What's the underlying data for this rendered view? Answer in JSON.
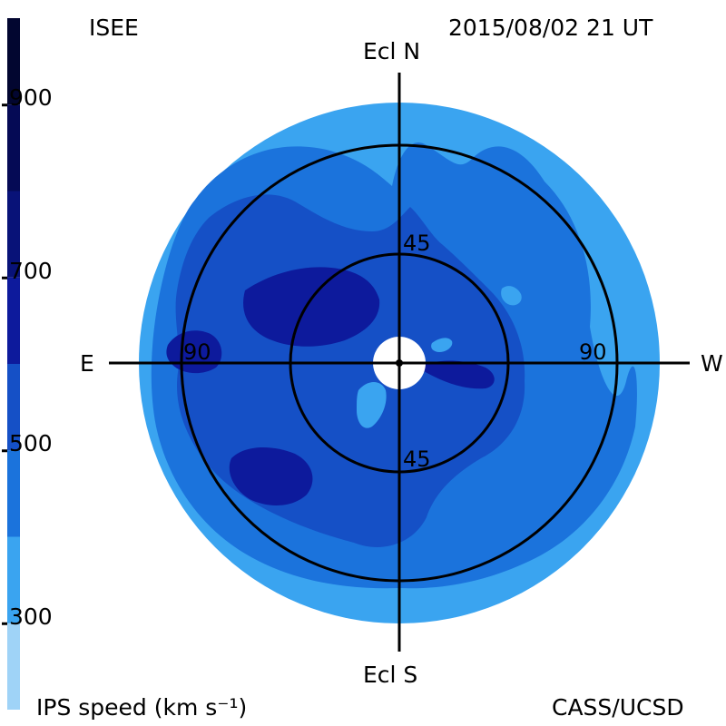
{
  "header": {
    "org": "ISEE",
    "timestamp": "2015/08/02 21 UT"
  },
  "footer": {
    "colorbar_title": "IPS speed (km s⁻¹)",
    "credit": "CASS/UCSD"
  },
  "directions": {
    "north": "Ecl N",
    "south": "Ecl S",
    "east": "E",
    "west": "W"
  },
  "rings": {
    "inner_top": "45",
    "inner_bottom": "45",
    "outer_left": "90",
    "outer_right": "90"
  },
  "colorbar": {
    "min": 200,
    "max": 1000,
    "ticks": [
      {
        "value": 900,
        "label": "900"
      },
      {
        "value": 700,
        "label": "700"
      },
      {
        "value": 500,
        "label": "500"
      },
      {
        "value": 300,
        "label": "300"
      }
    ],
    "bands": [
      {
        "from": 200,
        "to": 300,
        "color": "#9fd3f7"
      },
      {
        "from": 300,
        "to": 400,
        "color": "#3aa4f0"
      },
      {
        "from": 400,
        "to": 500,
        "color": "#1b73dc"
      },
      {
        "from": 500,
        "to": 600,
        "color": "#1550c6"
      },
      {
        "from": 600,
        "to": 700,
        "color": "#0d1a9c"
      },
      {
        "from": 700,
        "to": 800,
        "color": "#081278"
      },
      {
        "from": 800,
        "to": 900,
        "color": "#050a55"
      },
      {
        "from": 900,
        "to": 1000,
        "color": "#020630"
      }
    ]
  },
  "colors": {
    "speed_300_400": "#3aa4f0",
    "speed_400_500": "#1b73dc",
    "speed_500_600": "#1550c6",
    "speed_600_700": "#0d1a9c",
    "sun_disk": "#ffffff",
    "axes": "#000000"
  }
}
